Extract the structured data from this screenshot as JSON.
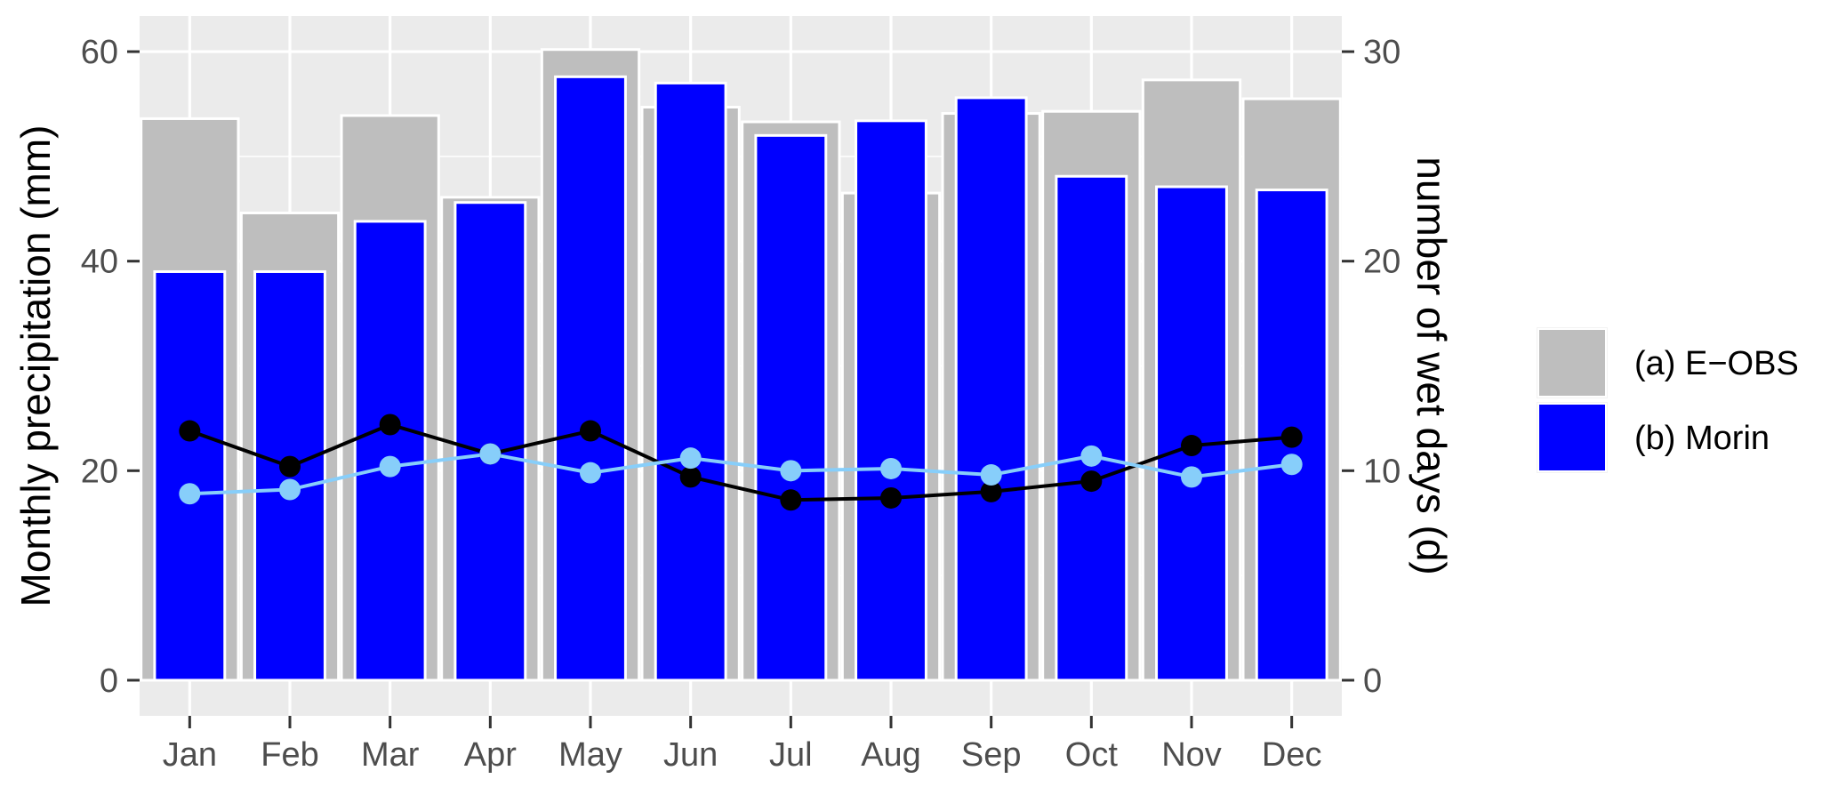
{
  "chart_data": {
    "type": "bar",
    "categories": [
      "Jan",
      "Feb",
      "Mar",
      "Apr",
      "May",
      "Jun",
      "Jul",
      "Aug",
      "Sep",
      "Oct",
      "Nov",
      "Dec"
    ],
    "bar_series": [
      {
        "name": "(a) E−OBS",
        "color": "#bebebe",
        "values": [
          53.6,
          44.6,
          53.9,
          46.1,
          60.2,
          54.7,
          53.3,
          46.5,
          54.1,
          54.3,
          57.3,
          55.5
        ]
      },
      {
        "name": "(b) Morin",
        "color": "#0000ff",
        "values": [
          39.0,
          39.0,
          43.8,
          45.6,
          57.6,
          57.0,
          52.0,
          53.4,
          55.6,
          48.1,
          47.1,
          46.8
        ]
      }
    ],
    "line_series": [
      {
        "color": "#000000",
        "axis": "right",
        "values": [
          11.9,
          10.2,
          12.2,
          10.8,
          11.9,
          9.7,
          8.6,
          8.7,
          9.0,
          9.5,
          11.2,
          11.6
        ]
      },
      {
        "color": "#87cefa",
        "axis": "right",
        "values": [
          8.9,
          9.1,
          10.2,
          10.8,
          9.9,
          10.6,
          10.0,
          10.1,
          9.8,
          10.7,
          9.7,
          10.3
        ]
      }
    ],
    "ylabel": "Monthly precipitation (mm)",
    "y2label": "number of wet days (d)",
    "ylim": [
      -3.4,
      63.4
    ],
    "yticks": [
      0,
      20,
      40,
      60
    ],
    "y2lim": [
      -1.7,
      31.7
    ],
    "y2ticks": [
      0,
      10,
      20,
      30
    ],
    "legend_position": "right",
    "grid": true,
    "panel_background": "#ebebeb"
  }
}
